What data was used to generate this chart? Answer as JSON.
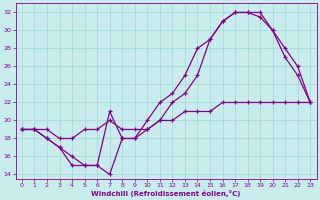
{
  "xlabel": "Windchill (Refroidissement éolien,°C)",
  "ylabel": "",
  "xlim": [
    -0.5,
    23.5
  ],
  "ylim": [
    13.5,
    33
  ],
  "xticks": [
    0,
    1,
    2,
    3,
    4,
    5,
    6,
    7,
    8,
    9,
    10,
    11,
    12,
    13,
    14,
    15,
    16,
    17,
    18,
    19,
    20,
    21,
    22,
    23
  ],
  "yticks": [
    14,
    16,
    18,
    20,
    22,
    24,
    26,
    28,
    30,
    32
  ],
  "bg_color": "#c8ecec",
  "line_color": "#880088",
  "grid_color": "#aadddd",
  "line1_x": [
    0,
    1,
    2,
    3,
    4,
    5,
    6,
    7,
    8,
    9,
    10,
    11,
    12,
    13,
    14,
    15,
    16,
    17,
    18,
    19,
    20,
    21,
    22,
    23
  ],
  "line1_y": [
    19,
    19,
    18,
    17,
    16,
    15,
    15,
    14,
    18,
    18,
    19,
    20,
    22,
    23,
    25,
    29,
    31,
    32,
    32,
    31.5,
    30,
    27,
    25,
    22
  ],
  "line2_x": [
    0,
    1,
    2,
    3,
    4,
    5,
    6,
    7,
    8,
    9,
    10,
    11,
    12,
    13,
    14,
    15,
    16,
    17,
    18,
    19,
    20,
    21,
    22,
    23
  ],
  "line2_y": [
    19,
    19,
    18,
    17,
    15,
    15,
    15,
    21,
    18,
    18,
    20,
    22,
    23,
    25,
    28,
    29,
    31,
    32,
    32,
    32,
    30,
    28,
    26,
    22
  ],
  "line3_x": [
    0,
    1,
    2,
    3,
    4,
    5,
    6,
    7,
    8,
    9,
    10,
    11,
    12,
    13,
    14,
    15,
    16,
    17,
    18,
    19,
    20,
    21,
    22,
    23
  ],
  "line3_y": [
    19,
    19,
    19,
    18,
    18,
    19,
    19,
    20,
    19,
    19,
    19,
    20,
    20,
    21,
    21,
    21,
    22,
    22,
    22,
    22,
    22,
    22,
    22,
    22
  ]
}
